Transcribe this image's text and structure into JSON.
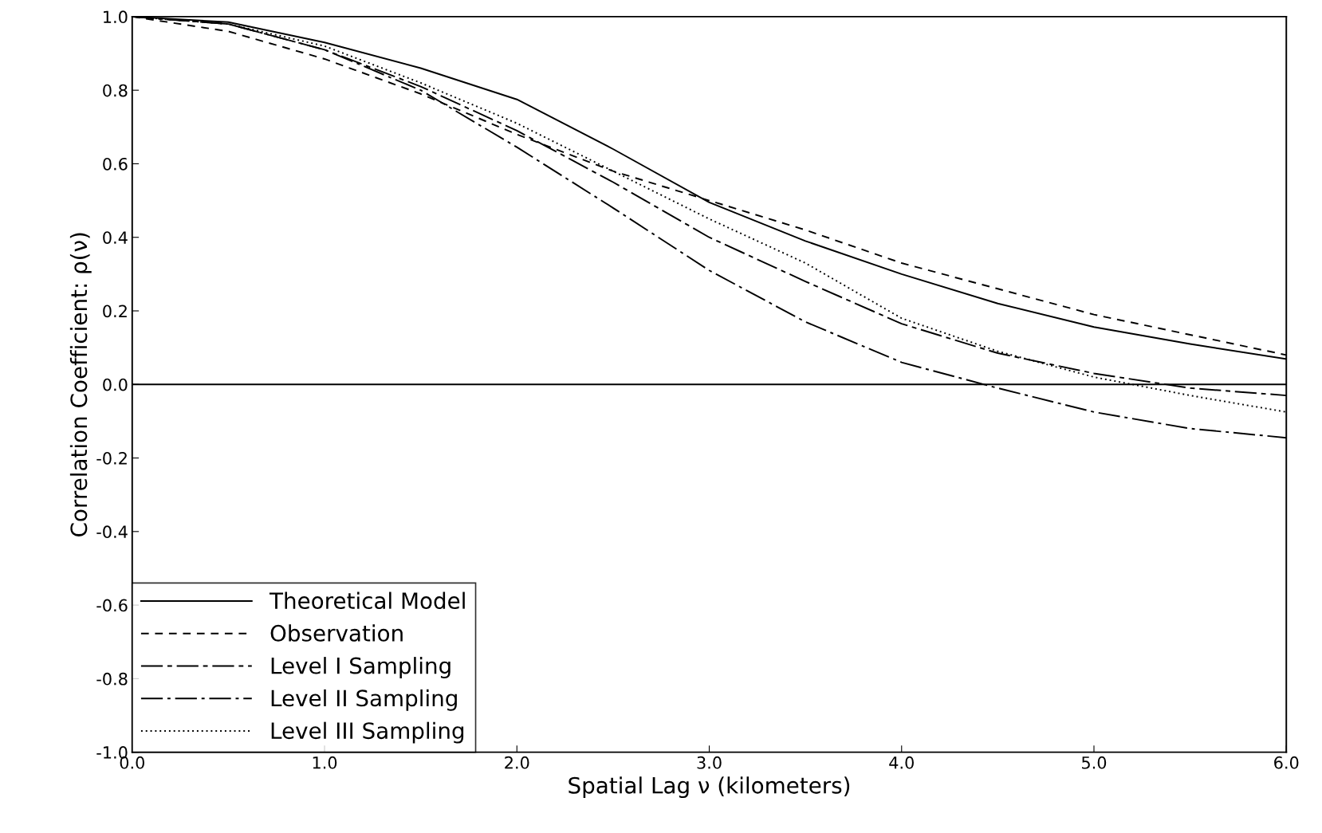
{
  "chart_data": {
    "type": "line",
    "xlabel": "Spatial Lag ν (kilometers)",
    "ylabel": "Correlation Coefficient: ρ(ν)",
    "x": [
      0,
      0.5,
      1.0,
      1.5,
      2.0,
      2.5,
      3.0,
      3.5,
      4.0,
      4.5,
      5.0,
      5.5,
      6.0
    ],
    "series": [
      {
        "name": "Theoretical Model",
        "color": "#000000",
        "line_style": "solid",
        "values": [
          1.0,
          0.985,
          0.93,
          0.86,
          0.775,
          0.64,
          0.495,
          0.39,
          0.3,
          0.22,
          0.156,
          0.11,
          0.069
        ]
      },
      {
        "name": "Observation",
        "color": "#000000",
        "line_style": "dashed",
        "values": [
          1.0,
          0.96,
          0.885,
          0.79,
          0.68,
          0.58,
          0.5,
          0.42,
          0.33,
          0.26,
          0.19,
          0.135,
          0.08
        ]
      },
      {
        "name": "Level I Sampling",
        "color": "#000000",
        "line_style": "longdash",
        "values": [
          1.0,
          0.98,
          0.91,
          0.81,
          0.69,
          0.55,
          0.4,
          0.28,
          0.165,
          0.085,
          0.03,
          -0.01,
          -0.03
        ]
      },
      {
        "name": "Level II Sampling",
        "color": "#000000",
        "line_style": "dashdot",
        "values": [
          1.0,
          0.98,
          0.91,
          0.8,
          0.645,
          0.48,
          0.31,
          0.17,
          0.06,
          -0.01,
          -0.075,
          -0.12,
          -0.145
        ]
      },
      {
        "name": "Level III Sampling",
        "color": "#000000",
        "line_style": "dotted",
        "values": [
          1.0,
          0.98,
          0.92,
          0.82,
          0.71,
          0.58,
          0.45,
          0.33,
          0.18,
          0.09,
          0.02,
          -0.03,
          -0.075
        ]
      }
    ],
    "xlim": [
      0.0,
      6.0
    ],
    "xticks": [
      {
        "value": 0,
        "label": "0.0"
      },
      {
        "value": 1,
        "label": "1.0"
      },
      {
        "value": 2,
        "label": "2.0"
      },
      {
        "value": 3,
        "label": "3.0"
      },
      {
        "value": 4,
        "label": "4.0"
      },
      {
        "value": 5,
        "label": "5.0"
      },
      {
        "value": 6,
        "label": "6.0"
      }
    ],
    "ylim": [
      -1.0,
      1.0
    ],
    "yticks": [
      {
        "value": -1,
        "label": "-1.0"
      },
      -0.8,
      -0.6,
      -0.4,
      -0.2,
      {
        "value": 0,
        "label": "0.0"
      },
      0.2,
      0.4,
      0.6,
      0.8,
      {
        "value": 1,
        "label": "1.0"
      }
    ],
    "ref_lines": [
      {
        "axis": "y",
        "value": 0.0,
        "color": "#000000",
        "line_style": "solid"
      }
    ],
    "legend": "bottom left",
    "grid": false
  }
}
